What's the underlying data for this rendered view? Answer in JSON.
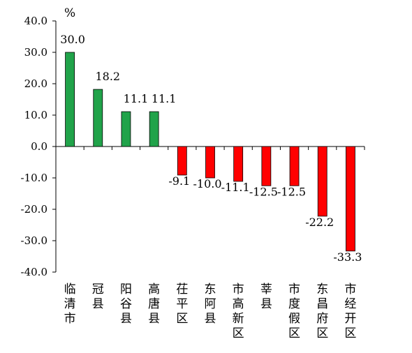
{
  "chart_data": {
    "type": "bar",
    "unit": "%",
    "ylim": [
      -40,
      40
    ],
    "yticks": [
      40,
      30,
      20,
      10,
      0,
      -10,
      -20,
      -30,
      -40
    ],
    "ytick_labels": [
      "40.0",
      "30.0",
      "20.0",
      "10.0",
      "0.0",
      "-10.0",
      "-20.0",
      "-30.0",
      "-40.0"
    ],
    "grid": false,
    "legend": "none",
    "categories": [
      "临清市",
      "冠县",
      "阳谷县",
      "高唐县",
      "茌平区",
      "东阿县",
      "市高新区",
      "莘县",
      "市度假区",
      "东昌府区",
      "市经开区"
    ],
    "values": [
      30.0,
      18.2,
      11.1,
      11.1,
      -9.1,
      -10.0,
      -11.1,
      -12.5,
      -12.5,
      -22.2,
      -33.3
    ],
    "value_labels": [
      "30.0",
      "18.2",
      "11.1",
      "11.1",
      "-9.1",
      "-10.0",
      "-11.1",
      "-12.5",
      "-12.5",
      "-22.2",
      "-33.3"
    ],
    "positive_color": "#21a34a",
    "negative_color": "#ff0000"
  }
}
